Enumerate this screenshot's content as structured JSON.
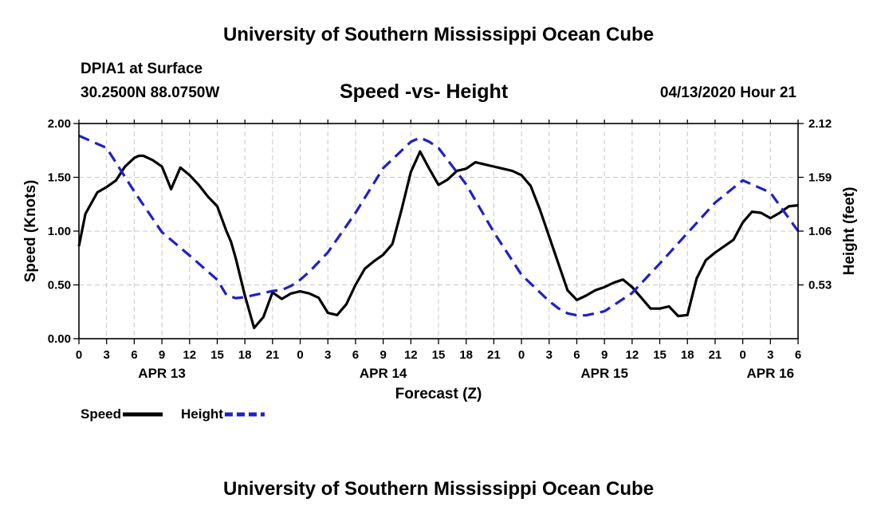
{
  "page": {
    "top_title": "University of Southern Mississippi Ocean Cube",
    "bottom_title": "University of Southern Mississippi Ocean Cube",
    "station": "DPIA1 at Surface",
    "coords": "30.2500N 88.0750W",
    "subtitle": "Speed -vs- Height",
    "datestamp": "04/13/2020 Hour 21"
  },
  "chart_data": {
    "type": "line",
    "title": "Speed -vs- Height",
    "xlabel": "Forecast (Z)",
    "ylabel": "Speed (Knots)",
    "y2label": "Height (feet)",
    "xlim": [
      0,
      78
    ],
    "ylim": [
      0,
      2
    ],
    "y2lim": [
      0,
      2.12
    ],
    "x_tick_labels": [
      "0",
      "3",
      "6",
      "9",
      "12",
      "15",
      "18",
      "21",
      "0",
      "3",
      "6",
      "9",
      "12",
      "15",
      "18",
      "21",
      "0",
      "3",
      "6",
      "9",
      "12",
      "15",
      "18",
      "21",
      "0",
      "3",
      "6"
    ],
    "date_labels": [
      {
        "label": "APR 13",
        "at_hour": 9
      },
      {
        "label": "APR 14",
        "at_hour": 33
      },
      {
        "label": "APR 15",
        "at_hour": 57
      },
      {
        "label": "APR 16",
        "at_hour": 75
      }
    ],
    "y_ticks": [
      "0.00",
      "0.50",
      "1.00",
      "1.50",
      "2.00"
    ],
    "y_tick_values": [
      0,
      0.5,
      1.0,
      1.5,
      2.0
    ],
    "y2_ticks": [
      "0.53",
      "1.06",
      "1.59",
      "2.12"
    ],
    "y2_tick_values": [
      0.53,
      1.06,
      1.59,
      2.12
    ],
    "grid": true,
    "series": [
      {
        "name": "Speed",
        "axis": "left",
        "color": "#000000",
        "dash": false,
        "x": [
          0,
          0.7,
          2,
          3,
          4,
          5,
          6,
          6.5,
          7,
          8,
          9,
          10,
          11,
          12,
          13,
          14,
          15,
          16,
          16.5,
          17,
          18,
          19,
          20,
          21,
          22,
          23,
          24,
          25,
          26,
          27,
          28,
          29,
          30,
          31,
          32,
          33,
          34,
          35,
          36,
          37,
          38,
          39,
          40,
          41,
          42,
          43,
          44,
          45,
          46,
          47,
          48,
          49,
          50,
          51,
          52,
          53,
          54,
          55,
          56,
          57,
          58,
          59,
          60,
          61,
          62,
          63,
          64,
          65,
          66,
          67,
          68,
          69,
          70,
          71,
          72,
          73,
          74,
          75,
          76,
          77,
          78
        ],
        "values": [
          0.86,
          1.16,
          1.36,
          1.41,
          1.47,
          1.6,
          1.68,
          1.7,
          1.7,
          1.66,
          1.6,
          1.39,
          1.59,
          1.52,
          1.43,
          1.32,
          1.23,
          1.0,
          0.9,
          0.75,
          0.4,
          0.1,
          0.2,
          0.43,
          0.37,
          0.42,
          0.44,
          0.42,
          0.38,
          0.24,
          0.22,
          0.32,
          0.5,
          0.65,
          0.72,
          0.78,
          0.88,
          1.2,
          1.55,
          1.74,
          1.58,
          1.43,
          1.48,
          1.56,
          1.58,
          1.64,
          1.62,
          1.6,
          1.58,
          1.56,
          1.52,
          1.42,
          1.2,
          0.95,
          0.7,
          0.45,
          0.36,
          0.4,
          0.45,
          0.48,
          0.52,
          0.55,
          0.48,
          0.38,
          0.28,
          0.28,
          0.3,
          0.21,
          0.22,
          0.56,
          0.73,
          0.8,
          0.86,
          0.92,
          1.08,
          1.18,
          1.17,
          1.12,
          1.17,
          1.23,
          1.24
        ]
      },
      {
        "name": "Height",
        "axis": "right",
        "color": "#1f1fc8",
        "dash": true,
        "x": [
          0,
          3,
          6,
          9,
          12,
          15,
          16,
          17,
          18,
          19,
          20,
          21,
          22,
          23,
          24,
          25,
          27,
          30,
          33,
          36,
          37,
          38,
          39,
          42,
          45,
          48,
          51,
          52,
          53,
          54,
          55,
          57,
          60,
          63,
          66,
          69,
          72,
          75,
          78
        ],
        "values": [
          2.0,
          1.88,
          1.45,
          1.05,
          0.82,
          0.58,
          0.43,
          0.4,
          0.41,
          0.43,
          0.45,
          0.47,
          0.48,
          0.52,
          0.58,
          0.66,
          0.85,
          1.24,
          1.68,
          1.94,
          1.98,
          1.94,
          1.88,
          1.52,
          1.05,
          0.63,
          0.37,
          0.3,
          0.25,
          0.23,
          0.23,
          0.27,
          0.45,
          0.74,
          1.04,
          1.34,
          1.56,
          1.44,
          1.06
        ]
      }
    ],
    "legend": {
      "placement": "bottom-left",
      "items": [
        {
          "label": "Speed",
          "color": "#000000",
          "dash": false
        },
        {
          "label": "Height",
          "color": "#1f1fc8",
          "dash": true
        }
      ]
    }
  }
}
